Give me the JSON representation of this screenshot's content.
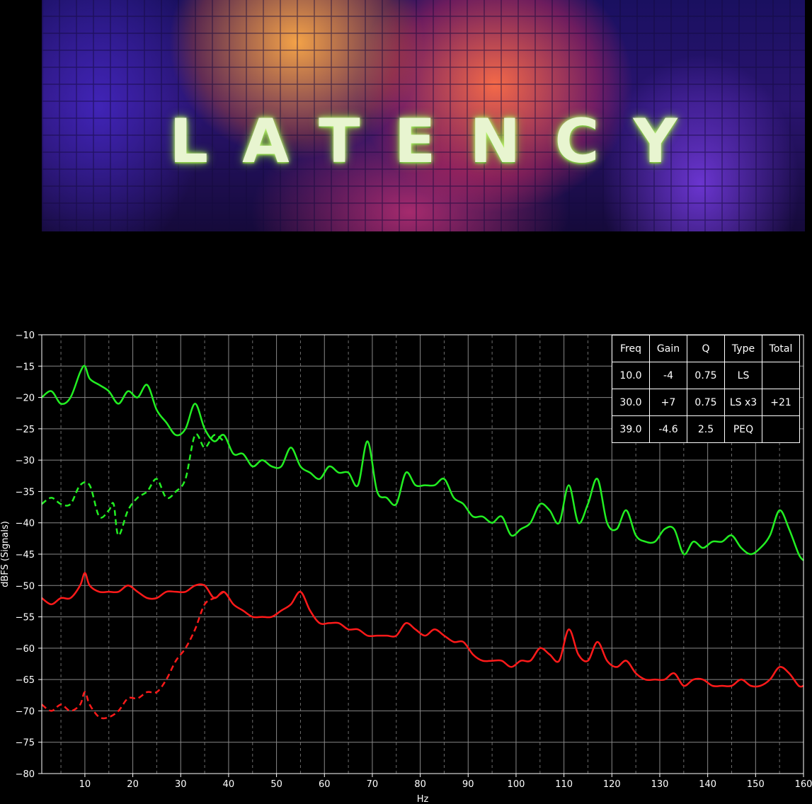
{
  "poster": {
    "title": "LATENCY"
  },
  "chart_data": {
    "type": "line",
    "xlabel": "Hz",
    "ylabel": "dBFS (Signals)",
    "xlim": [
      1,
      160
    ],
    "ylim": [
      -80,
      -10
    ],
    "xticks": [
      10,
      20,
      30,
      40,
      50,
      60,
      70,
      80,
      90,
      100,
      110,
      120,
      130,
      140,
      150,
      160
    ],
    "yticks": [
      -10,
      -15,
      -20,
      -25,
      -30,
      -35,
      -40,
      -45,
      -50,
      -55,
      -60,
      -65,
      -70,
      -75,
      -80
    ],
    "grid": true,
    "minor_x_dashed_every": 5,
    "colors": {
      "green": "#22ee22",
      "red": "#ff1a1a",
      "background": "#000000",
      "grid": "#888888"
    },
    "series": [
      {
        "style": "solid",
        "color": "green",
        "x": [
          1,
          3,
          5,
          7,
          9,
          10,
          11,
          13,
          15,
          17,
          19,
          21,
          23,
          25,
          27,
          29,
          31,
          33,
          35,
          37,
          39,
          41,
          43,
          45,
          47,
          49,
          51,
          53,
          55,
          57,
          59,
          61,
          63,
          65,
          67,
          69,
          71,
          73,
          75,
          77,
          79,
          81,
          83,
          85,
          87,
          89,
          91,
          93,
          95,
          97,
          99,
          101,
          103,
          105,
          107,
          109,
          111,
          113,
          115,
          117,
          119,
          121,
          123,
          125,
          127,
          129,
          131,
          133,
          135,
          137,
          139,
          141,
          143,
          145,
          147,
          149,
          151,
          153,
          155,
          157,
          159,
          160
        ],
        "y": [
          -20,
          -19,
          -21,
          -20,
          -16,
          -15,
          -17,
          -18,
          -19,
          -21,
          -19,
          -20,
          -18,
          -22,
          -24,
          -26,
          -25,
          -21,
          -25,
          -27,
          -26,
          -29,
          -29,
          -31,
          -30,
          -31,
          -31,
          -28,
          -31,
          -32,
          -33,
          -31,
          -32,
          -32,
          -34,
          -27,
          -35,
          -36,
          -37,
          -32,
          -34,
          -34,
          -34,
          -33,
          -36,
          -37,
          -39,
          -39,
          -40,
          -39,
          -42,
          -41,
          -40,
          -37,
          -38,
          -40,
          -34,
          -40,
          -37,
          -33,
          -40,
          -41,
          -38,
          -42,
          -43,
          -43,
          -41,
          -41,
          -45,
          -43,
          -44,
          -43,
          -43,
          -42,
          -44,
          -45,
          -44,
          -42,
          -38,
          -41,
          -45,
          -46
        ]
      },
      {
        "style": "dashed",
        "color": "green",
        "x": [
          1,
          3,
          5,
          7,
          9,
          11,
          13,
          15,
          16,
          17,
          19,
          21,
          23,
          25,
          27,
          29,
          31,
          33,
          35,
          37,
          39
        ],
        "y": [
          -37,
          -36,
          -37,
          -37,
          -34,
          -34,
          -39,
          -38,
          -37,
          -42,
          -38,
          -36,
          -35,
          -33,
          -36,
          -35,
          -33,
          -26,
          -28,
          -26,
          -27
        ]
      },
      {
        "style": "solid",
        "color": "red",
        "x": [
          1,
          3,
          5,
          7,
          9,
          10,
          11,
          13,
          15,
          17,
          19,
          21,
          23,
          25,
          27,
          29,
          31,
          33,
          35,
          37,
          39,
          41,
          43,
          45,
          47,
          49,
          51,
          53,
          55,
          57,
          59,
          61,
          63,
          65,
          67,
          69,
          71,
          73,
          75,
          77,
          79,
          81,
          83,
          85,
          87,
          89,
          91,
          93,
          95,
          97,
          99,
          101,
          103,
          105,
          107,
          109,
          111,
          113,
          115,
          117,
          119,
          121,
          123,
          125,
          127,
          129,
          131,
          133,
          135,
          137,
          139,
          141,
          143,
          145,
          147,
          149,
          151,
          153,
          155,
          157,
          159,
          160
        ],
        "y": [
          -52,
          -53,
          -52,
          -52,
          -50,
          -48,
          -50,
          -51,
          -51,
          -51,
          -50,
          -51,
          -52,
          -52,
          -51,
          -51,
          -51,
          -50,
          -50,
          -52,
          -51,
          -53,
          -54,
          -55,
          -55,
          -55,
          -54,
          -53,
          -51,
          -54,
          -56,
          -56,
          -56,
          -57,
          -57,
          -58,
          -58,
          -58,
          -58,
          -56,
          -57,
          -58,
          -57,
          -58,
          -59,
          -59,
          -61,
          -62,
          -62,
          -62,
          -63,
          -62,
          -62,
          -60,
          -61,
          -62,
          -57,
          -61,
          -62,
          -59,
          -62,
          -63,
          -62,
          -64,
          -65,
          -65,
          -65,
          -64,
          -66,
          -65,
          -65,
          -66,
          -66,
          -66,
          -65,
          -66,
          -66,
          -65,
          -63,
          -64,
          -66,
          -66
        ]
      },
      {
        "style": "dashed",
        "color": "red",
        "x": [
          1,
          3,
          5,
          7,
          9,
          10,
          11,
          13,
          15,
          17,
          19,
          21,
          23,
          25,
          27,
          29,
          31,
          33,
          35,
          37,
          39
        ],
        "y": [
          -69,
          -70,
          -69,
          -70,
          -69,
          -67,
          -69,
          -71,
          -71,
          -70,
          -68,
          -68,
          -67,
          -67,
          -65,
          -62,
          -60,
          -57,
          -53,
          -52,
          -51
        ]
      }
    ],
    "table": {
      "header": [
        "Freq",
        "Gain",
        "Q",
        "Type",
        "Total"
      ],
      "rows": [
        [
          "10.0",
          "-4",
          "0.75",
          "LS",
          ""
        ],
        [
          "30.0",
          "+7",
          "0.75",
          "LS x3",
          "+21"
        ],
        [
          "39.0",
          "-4.6",
          "2.5",
          "PEQ",
          ""
        ]
      ]
    }
  }
}
